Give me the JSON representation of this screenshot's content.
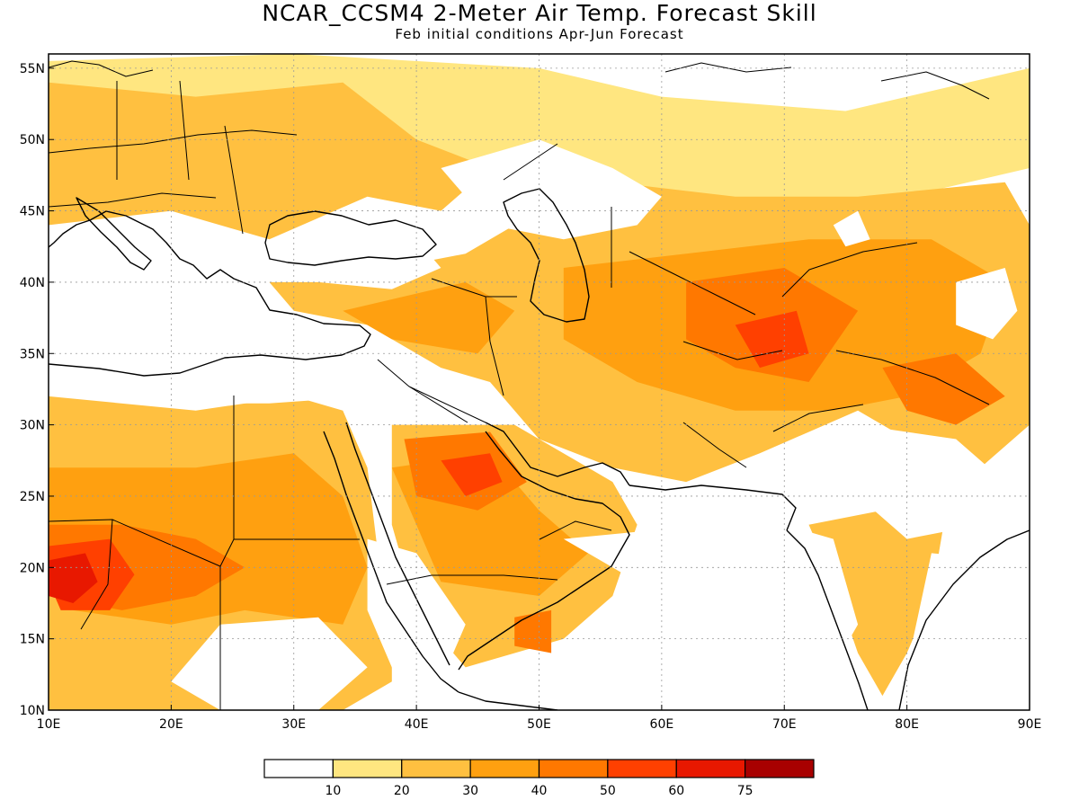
{
  "title": "NCAR_CCSM4 2-Meter Air Temp. Forecast Skill",
  "subtitle": "Feb initial conditions  Apr-Jun Forecast",
  "lat_ticks": [
    {
      "lat": 55,
      "label": "55N"
    },
    {
      "lat": 50,
      "label": "50N"
    },
    {
      "lat": 45,
      "label": "45N"
    },
    {
      "lat": 40,
      "label": "40N"
    },
    {
      "lat": 35,
      "label": "35N"
    },
    {
      "lat": 30,
      "label": "30N"
    },
    {
      "lat": 25,
      "label": "25N"
    },
    {
      "lat": 20,
      "label": "20N"
    },
    {
      "lat": 15,
      "label": "15N"
    },
    {
      "lat": 10,
      "label": "10N"
    }
  ],
  "lon_ticks": [
    {
      "lon": 10,
      "label": "10E"
    },
    {
      "lon": 20,
      "label": "20E"
    },
    {
      "lon": 30,
      "label": "30E"
    },
    {
      "lon": 40,
      "label": "40E"
    },
    {
      "lon": 50,
      "label": "50E"
    },
    {
      "lon": 60,
      "label": "60E"
    },
    {
      "lon": 70,
      "label": "70E"
    },
    {
      "lon": 80,
      "label": "80E"
    },
    {
      "lon": 90,
      "label": "90E"
    }
  ],
  "extent": {
    "lon_min": 10,
    "lon_max": 90,
    "lat_min": 10,
    "lat_max": 56
  },
  "colorbar": {
    "colors": [
      "#ffffff",
      "#ffe680",
      "#ffc040",
      "#ffa010",
      "#ff7800",
      "#ff4000",
      "#e81800",
      "#a80000"
    ],
    "labels": [
      "10",
      "20",
      "30",
      "40",
      "50",
      "60",
      "75"
    ]
  },
  "regions": [
    {
      "level": 1,
      "points": [
        [
          10,
          55.5
        ],
        [
          30,
          56
        ],
        [
          50,
          55
        ],
        [
          60,
          53
        ],
        [
          75,
          52
        ],
        [
          90,
          55
        ],
        [
          90,
          48
        ],
        [
          75,
          45
        ],
        [
          55,
          47
        ],
        [
          40,
          48
        ],
        [
          25,
          47
        ],
        [
          10,
          46
        ]
      ]
    },
    {
      "level": 2,
      "points": [
        [
          10,
          54
        ],
        [
          22,
          53
        ],
        [
          34,
          54
        ],
        [
          40,
          50
        ],
        [
          46,
          48
        ],
        [
          42,
          45
        ],
        [
          36,
          46
        ],
        [
          32,
          44.5
        ],
        [
          28,
          43
        ],
        [
          20,
          45
        ],
        [
          10,
          44
        ]
      ]
    },
    {
      "level": 2,
      "points": [
        [
          48,
          44
        ],
        [
          56,
          47
        ],
        [
          66,
          46
        ],
        [
          76,
          46
        ],
        [
          88,
          47
        ],
        [
          90,
          44
        ],
        [
          90,
          30
        ],
        [
          86,
          27
        ],
        [
          80,
          29
        ],
        [
          76,
          31
        ],
        [
          68,
          28
        ],
        [
          62,
          26
        ],
        [
          56,
          27
        ],
        [
          50,
          29
        ],
        [
          46,
          33
        ],
        [
          42,
          34
        ],
        [
          36,
          37
        ],
        [
          30,
          38
        ],
        [
          28,
          40
        ],
        [
          38,
          41
        ],
        [
          44,
          42
        ]
      ]
    },
    {
      "level": 2,
      "points": [
        [
          10,
          32
        ],
        [
          22,
          31
        ],
        [
          30,
          32
        ],
        [
          34,
          31
        ],
        [
          36,
          27
        ],
        [
          37,
          20
        ],
        [
          38,
          15
        ],
        [
          38,
          12
        ],
        [
          34,
          10
        ],
        [
          10,
          10
        ]
      ]
    },
    {
      "level": 2,
      "points": [
        [
          38,
          30
        ],
        [
          48,
          30
        ],
        [
          56,
          26
        ],
        [
          58,
          23
        ],
        [
          56,
          18
        ],
        [
          52,
          15
        ],
        [
          44,
          13
        ],
        [
          40,
          17
        ],
        [
          38,
          23
        ]
      ]
    },
    {
      "level": 2,
      "points": [
        [
          72,
          23
        ],
        [
          78,
          24
        ],
        [
          83,
          23
        ],
        [
          82,
          18
        ],
        [
          80,
          14
        ],
        [
          78,
          11
        ],
        [
          76,
          14
        ],
        [
          74,
          19
        ]
      ]
    },
    {
      "level": 3,
      "points": [
        [
          52,
          41
        ],
        [
          62,
          42
        ],
        [
          72,
          43
        ],
        [
          82,
          43
        ],
        [
          88,
          40
        ],
        [
          86,
          35
        ],
        [
          80,
          32
        ],
        [
          74,
          31
        ],
        [
          66,
          31
        ],
        [
          58,
          33
        ],
        [
          52,
          36
        ]
      ]
    },
    {
      "level": 3,
      "points": [
        [
          10,
          27
        ],
        [
          22,
          27
        ],
        [
          30,
          28
        ],
        [
          34,
          25
        ],
        [
          36,
          20
        ],
        [
          34,
          16
        ],
        [
          26,
          17
        ],
        [
          20,
          16
        ],
        [
          12,
          17
        ],
        [
          10,
          20
        ]
      ]
    },
    {
      "level": 3,
      "points": [
        [
          38,
          27
        ],
        [
          46,
          28
        ],
        [
          50,
          24
        ],
        [
          54,
          21
        ],
        [
          50,
          18
        ],
        [
          42,
          19
        ],
        [
          40,
          23
        ]
      ]
    },
    {
      "level": 3,
      "points": [
        [
          34,
          38
        ],
        [
          44,
          40
        ],
        [
          48,
          38
        ],
        [
          45,
          35
        ],
        [
          38,
          36
        ]
      ]
    },
    {
      "level": 4,
      "points": [
        [
          62,
          40
        ],
        [
          70,
          41
        ],
        [
          76,
          38
        ],
        [
          72,
          33
        ],
        [
          66,
          34
        ],
        [
          62,
          36
        ]
      ]
    },
    {
      "level": 4,
      "points": [
        [
          39,
          29
        ],
        [
          46,
          29.5
        ],
        [
          49,
          26
        ],
        [
          45,
          24
        ],
        [
          40,
          25
        ]
      ]
    },
    {
      "level": 4,
      "points": [
        [
          10,
          23
        ],
        [
          16,
          23
        ],
        [
          22,
          22
        ],
        [
          26,
          20
        ],
        [
          22,
          18
        ],
        [
          16,
          17
        ],
        [
          10,
          18
        ]
      ]
    },
    {
      "level": 4,
      "points": [
        [
          78,
          34
        ],
        [
          84,
          35
        ],
        [
          88,
          32
        ],
        [
          84,
          30
        ],
        [
          80,
          31
        ]
      ]
    },
    {
      "level": 4,
      "points": [
        [
          48,
          16.5
        ],
        [
          51,
          17
        ],
        [
          51,
          14
        ],
        [
          48,
          14.5
        ]
      ]
    },
    {
      "level": 5,
      "points": [
        [
          10,
          21.5
        ],
        [
          15,
          22
        ],
        [
          17,
          19.5
        ],
        [
          15,
          17
        ],
        [
          11,
          17
        ],
        [
          10,
          19
        ]
      ]
    },
    {
      "level": 5,
      "points": [
        [
          42,
          27.5
        ],
        [
          46,
          28
        ],
        [
          47,
          26
        ],
        [
          44,
          25
        ]
      ]
    },
    {
      "level": 5,
      "points": [
        [
          66,
          37
        ],
        [
          71,
          38
        ],
        [
          72,
          35
        ],
        [
          68,
          34
        ]
      ]
    },
    {
      "level": 6,
      "points": [
        [
          10,
          20.5
        ],
        [
          13,
          21
        ],
        [
          14,
          19
        ],
        [
          12,
          17.5
        ],
        [
          10,
          18
        ]
      ]
    }
  ],
  "white_patches": [
    [
      [
        42,
        48
      ],
      [
        50,
        50
      ],
      [
        56,
        48
      ],
      [
        60,
        46
      ],
      [
        58,
        44
      ],
      [
        52,
        43
      ],
      [
        46,
        44
      ]
    ],
    [
      [
        28,
        40
      ],
      [
        34,
        42
      ],
      [
        40,
        43
      ],
      [
        42,
        41
      ],
      [
        38,
        39.5
      ],
      [
        32,
        40
      ]
    ],
    [
      [
        12,
        38
      ],
      [
        20,
        40
      ],
      [
        26,
        39
      ],
      [
        30,
        37
      ],
      [
        34,
        35
      ],
      [
        36,
        32
      ],
      [
        28,
        31.5
      ],
      [
        20,
        31.5
      ],
      [
        12,
        33
      ]
    ],
    [
      [
        76,
        30
      ],
      [
        84,
        29
      ],
      [
        88,
        26
      ],
      [
        86,
        23
      ],
      [
        80,
        22
      ],
      [
        76,
        25
      ],
      [
        72,
        27
      ]
    ],
    [
      [
        24,
        16
      ],
      [
        32,
        16.5
      ],
      [
        36,
        13
      ],
      [
        32,
        10
      ],
      [
        24,
        10
      ],
      [
        20,
        12
      ]
    ],
    [
      [
        36,
        22
      ],
      [
        40,
        21
      ],
      [
        44,
        16
      ],
      [
        42,
        12
      ],
      [
        38,
        13
      ],
      [
        36,
        17
      ]
    ],
    [
      [
        52,
        22
      ],
      [
        58,
        22.5
      ],
      [
        66,
        24
      ],
      [
        74,
        22
      ],
      [
        76,
        16
      ],
      [
        72,
        10
      ],
      [
        56,
        10
      ],
      [
        54,
        14
      ],
      [
        60,
        18
      ],
      [
        56,
        20
      ]
    ],
    [
      [
        82,
        21
      ],
      [
        88,
        20.5
      ],
      [
        90,
        18
      ],
      [
        90,
        10
      ],
      [
        84,
        10
      ],
      [
        80,
        13
      ],
      [
        81,
        17
      ]
    ],
    [
      [
        84,
        40
      ],
      [
        88,
        41
      ],
      [
        89,
        38
      ],
      [
        87,
        36
      ],
      [
        84,
        37
      ]
    ],
    [
      [
        74,
        44
      ],
      [
        76,
        45
      ],
      [
        77,
        43
      ],
      [
        75,
        42.5
      ]
    ]
  ]
}
